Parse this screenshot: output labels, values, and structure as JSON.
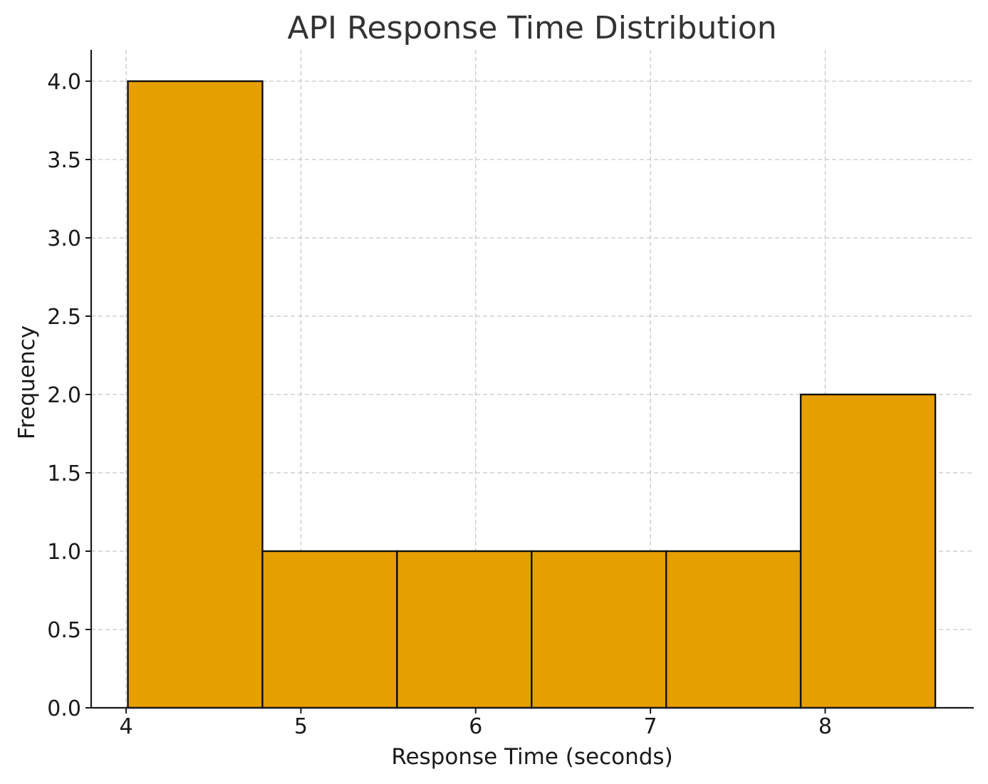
{
  "chart_data": {
    "type": "bar",
    "subtype": "histogram",
    "title": "API Response Time Distribution",
    "xlabel": "Response Time (seconds)",
    "ylabel": "Frequency",
    "bins": [
      {
        "start": 4.01,
        "end": 4.78,
        "value": 4
      },
      {
        "start": 4.78,
        "end": 5.55,
        "value": 1
      },
      {
        "start": 5.55,
        "end": 6.32,
        "value": 1
      },
      {
        "start": 6.32,
        "end": 7.09,
        "value": 1
      },
      {
        "start": 7.09,
        "end": 7.86,
        "value": 1
      },
      {
        "start": 7.86,
        "end": 8.63,
        "value": 2
      }
    ],
    "xlim": [
      3.8,
      8.85
    ],
    "ylim": [
      0,
      4.2
    ],
    "xticks": [
      4,
      5,
      6,
      7,
      8
    ],
    "xtick_labels": [
      "4",
      "5",
      "6",
      "7",
      "8"
    ],
    "yticks": [
      0,
      0.5,
      1,
      1.5,
      2,
      2.5,
      3,
      3.5,
      4
    ],
    "ytick_labels": [
      "0.0",
      "0.5",
      "1.0",
      "1.5",
      "2.0",
      "2.5",
      "3.0",
      "3.5",
      "4.0"
    ],
    "grid": true,
    "legend": "none",
    "bar_color": "#E69F00",
    "edge_color": "#111111",
    "grid_color": "#c8c8c8"
  }
}
